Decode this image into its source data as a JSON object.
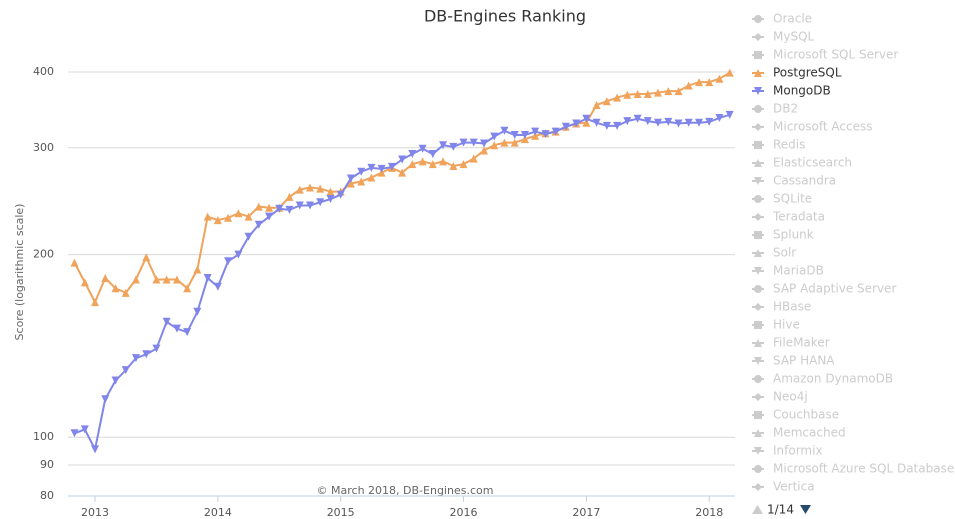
{
  "chart_data": {
    "type": "line",
    "title": "DB-Engines Ranking",
    "y_label": "Score (logarithmic scale)",
    "credit": "© March 2018, DB-Engines.com",
    "pager": "1/14",
    "log_y": true,
    "grid": true,
    "legend_position": "right",
    "xlim": [
      2012.78,
      2018.21
    ],
    "xticks": [
      2013,
      2014,
      2015,
      2016,
      2017,
      2018
    ],
    "ylim": [
      80,
      450
    ],
    "yticks": [
      80,
      90,
      100,
      200,
      300,
      400
    ],
    "x": [
      2012.833,
      2012.917,
      2013,
      2013.083,
      2013.167,
      2013.25,
      2013.333,
      2013.417,
      2013.5,
      2013.583,
      2013.667,
      2013.75,
      2013.833,
      2013.917,
      2014,
      2014.083,
      2014.167,
      2014.25,
      2014.333,
      2014.417,
      2014.5,
      2014.583,
      2014.667,
      2014.75,
      2014.833,
      2014.917,
      2015,
      2015.083,
      2015.167,
      2015.25,
      2015.333,
      2015.417,
      2015.5,
      2015.583,
      2015.667,
      2015.75,
      2015.833,
      2015.917,
      2016,
      2016.083,
      2016.167,
      2016.25,
      2016.333,
      2016.417,
      2016.5,
      2016.583,
      2016.667,
      2016.75,
      2016.833,
      2016.917,
      2017,
      2017.083,
      2017.167,
      2017.25,
      2017.333,
      2017.417,
      2017.5,
      2017.583,
      2017.667,
      2017.75,
      2017.833,
      2017.917,
      2018,
      2018.083,
      2018.167
    ],
    "series": [
      {
        "name": "Oracle",
        "visible": false
      },
      {
        "name": "MySQL",
        "visible": false
      },
      {
        "name": "Microsoft SQL Server",
        "visible": false
      },
      {
        "name": "PostgreSQL",
        "visible": true,
        "color": "#f0a35a",
        "marker": "triangle",
        "values": [
          194,
          180,
          167,
          183,
          176,
          173,
          182,
          198,
          182,
          182,
          182,
          176,
          189,
          231,
          228,
          230,
          234,
          231,
          240,
          239,
          239,
          249,
          256,
          258,
          257,
          254,
          254,
          262,
          264,
          268,
          273,
          278,
          273,
          282,
          285,
          282,
          285,
          280,
          282,
          288,
          297,
          303,
          306,
          306,
          310,
          314,
          317,
          319,
          325,
          329,
          330,
          353,
          358,
          363,
          367,
          368,
          368,
          370,
          372,
          372,
          380,
          385,
          385,
          390,
          399
        ]
      },
      {
        "name": "MongoDB",
        "visible": true,
        "color": "#8085e9",
        "marker": "triangle-down",
        "values": [
          101.5,
          103,
          95.5,
          115.5,
          124,
          129,
          135,
          137,
          140,
          155,
          151,
          149,
          161,
          183,
          177,
          195,
          200,
          214,
          224,
          231,
          238,
          237,
          241,
          241,
          244,
          247,
          251,
          267,
          274,
          278,
          277,
          279,
          287,
          293,
          299,
          293,
          303,
          301,
          306,
          306,
          305,
          313,
          320,
          315,
          315,
          319,
          316,
          319,
          325,
          329,
          335,
          330,
          326,
          326,
          332,
          335,
          332,
          330,
          331,
          329,
          330,
          330,
          331,
          336,
          340
        ]
      },
      {
        "name": "DB2",
        "visible": false
      },
      {
        "name": "Microsoft Access",
        "visible": false
      },
      {
        "name": "Redis",
        "visible": false
      },
      {
        "name": "Elasticsearch",
        "visible": false
      },
      {
        "name": "Cassandra",
        "visible": false
      },
      {
        "name": "SQLite",
        "visible": false
      },
      {
        "name": "Teradata",
        "visible": false
      },
      {
        "name": "Splunk",
        "visible": false
      },
      {
        "name": "Solr",
        "visible": false
      },
      {
        "name": "MariaDB",
        "visible": false
      },
      {
        "name": "SAP Adaptive Server",
        "visible": false
      },
      {
        "name": "HBase",
        "visible": false
      },
      {
        "name": "Hive",
        "visible": false
      },
      {
        "name": "FileMaker",
        "visible": false
      },
      {
        "name": "SAP HANA",
        "visible": false
      },
      {
        "name": "Amazon DynamoDB",
        "visible": false
      },
      {
        "name": "Neo4j",
        "visible": false
      },
      {
        "name": "Couchbase",
        "visible": false
      },
      {
        "name": "Memcached",
        "visible": false
      },
      {
        "name": "Informix",
        "visible": false
      },
      {
        "name": "Microsoft Azure SQL Database",
        "visible": false
      },
      {
        "name": "Vertica",
        "visible": false
      }
    ]
  }
}
